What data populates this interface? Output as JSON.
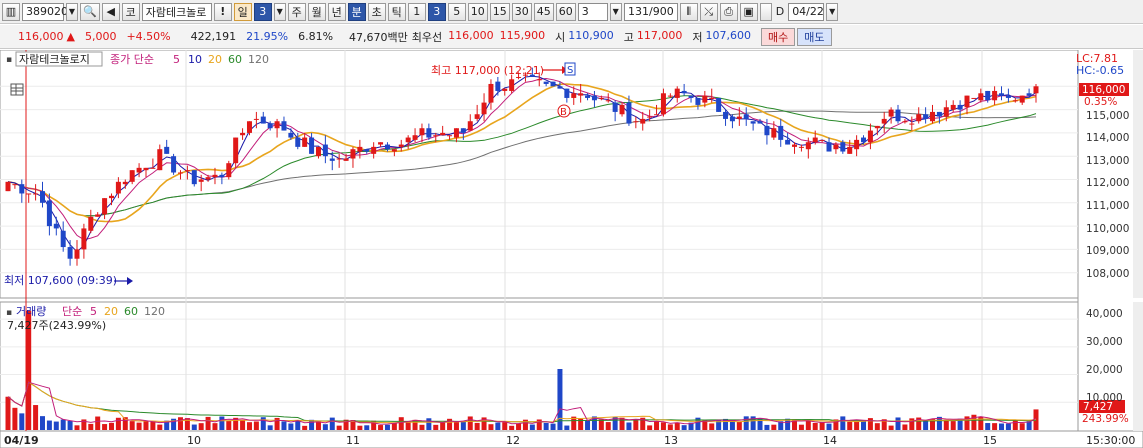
{
  "toolbar": {
    "code": "389020",
    "market": "코",
    "name": "자람테크놀로",
    "excl": "!",
    "period": "일",
    "period_n": "3",
    "periods": [
      "주",
      "월",
      "년"
    ],
    "minute": "분",
    "tick_labels": [
      "초",
      "틱"
    ],
    "intervals": [
      "1",
      "3",
      "5",
      "10",
      "15",
      "30",
      "45",
      "60"
    ],
    "interval_selected": "3",
    "count_select": "3",
    "count_display": "131/900",
    "d_label": "D",
    "date_input": "04/22"
  },
  "quote": {
    "price": "116,000",
    "arrow": "▲",
    "change": "5,000",
    "change_pct": "+4.50%",
    "volume": "422,191",
    "vol_ratio": "21.95%",
    "turnover": "6.81%",
    "amount": "47,670백만",
    "best_label": "최우선",
    "ask": "116,000",
    "bid": "115,900",
    "open_label": "시",
    "open": "110,900",
    "high_label": "고",
    "high": "117,000",
    "low_label": "저",
    "low": "107,600",
    "buy_button": "매수",
    "sell_button": "매도"
  },
  "price_panel": {
    "name": "자람테크놀로지",
    "ma_title": "종가 단순",
    "ma_periods": [
      "5",
      "10",
      "20",
      "60",
      "120"
    ],
    "lc": "LC:7.81",
    "hc": "HC:-0.65",
    "current_price": "116,000",
    "current_pct": "0.35%",
    "high_note": "최고 117,000 (12:21)",
    "low_note": "최저 107,600 (09:39)",
    "signal_s": "S",
    "signal_b": "B",
    "y_labels": [
      "116,000",
      "115,000",
      "114,000",
      "113,000",
      "112,000",
      "111,000",
      "110,000",
      "109,000",
      "108,000"
    ]
  },
  "volume_panel": {
    "title": "거래량",
    "ma_title": "단순",
    "ma_periods": [
      "5",
      "20",
      "60",
      "120"
    ],
    "current": "7,427주(243.99%)",
    "y_labels": [
      "40,000",
      "30,000",
      "20,000",
      "10,000"
    ],
    "current_value": "7,427",
    "current_pct": "243.99%"
  },
  "x_axis": {
    "labels": [
      "04/19",
      "10",
      "11",
      "12",
      "13",
      "14",
      "15"
    ],
    "time": "15:30:00"
  },
  "chart_data": {
    "type": "candlestick",
    "price_axis": {
      "min": 107000,
      "max": 117300,
      "ticks": [
        108000,
        109000,
        110000,
        111000,
        112000,
        113000,
        114000,
        115000,
        116000
      ]
    },
    "volume_axis": {
      "max": 44000,
      "ticks": [
        10000,
        20000,
        30000,
        40000
      ]
    },
    "sessions": [
      "04/19",
      "10",
      "11",
      "12",
      "13",
      "14",
      "15"
    ],
    "close_anchors": [
      111900,
      111400,
      108500,
      110900,
      112300,
      113000,
      112000,
      112100,
      114700,
      114300,
      113300,
      112800,
      113600,
      113600,
      114000,
      113900,
      116000,
      116200,
      115900,
      115800,
      115100,
      114500,
      115700,
      115400,
      114700,
      114100,
      113800,
      113400,
      113600,
      114800,
      114700,
      115100,
      115600,
      115400,
      116000
    ],
    "ma_colors": {
      "5": "#1a1aa8",
      "10": "#c21e7a",
      "20": "#e8a51d",
      "60": "#2b8a2b",
      "120": "#707070"
    }
  }
}
